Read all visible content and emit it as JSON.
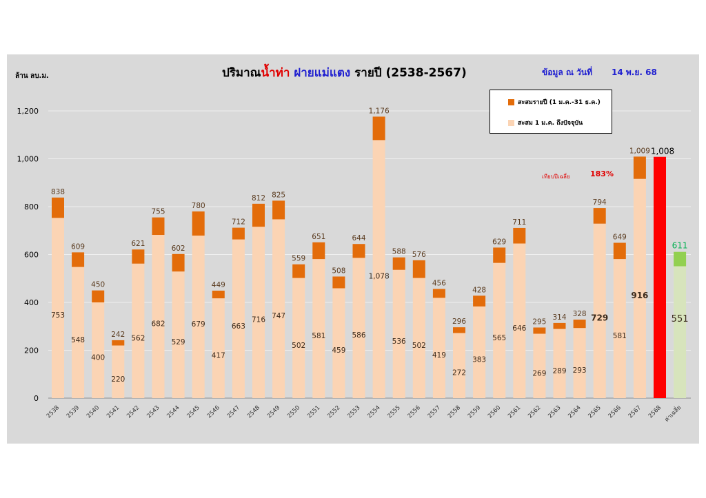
{
  "header": {
    "title_part1": "ปริมาณ",
    "title_part2": "น้ำท่า",
    "title_part3": " ฝายแม่แตง ",
    "title_part4": "รายปี  (2538-2567)",
    "date_label": "ข้อมูล ณ วันที่",
    "date_value": "14 พ.ย. 68",
    "unit": "ล้าน ลบ.ม."
  },
  "legend": {
    "series1": "สะสมรายปี (1 ม.ค.-31 ธ.ค.)",
    "series2": "สะสม 1 ม.ค. ถึงปัจจุบัน"
  },
  "annotation": {
    "compare_label": "เทียบปีเฉลี่ย",
    "percent": "183%"
  },
  "colors": {
    "annual_top": "#e36c0a",
    "to_date": "#fbd4b4",
    "current_year": "#ff0000",
    "avg_top": "#92d050",
    "avg_base": "#d7e4bc",
    "avg_label": "#00b050"
  },
  "chart_data": {
    "type": "bar",
    "title": "ปริมาณน้ำท่า ฝายแม่แตง รายปี  (2538-2567)",
    "ylabel": "ล้าน ลบ.ม.",
    "ylim": [
      0,
      1300
    ],
    "yticks": [
      "0",
      "200",
      "400",
      "600",
      "800",
      "1,000",
      "1,200"
    ],
    "categories": [
      "2538",
      "2539",
      "2540",
      "2541",
      "2542",
      "2543",
      "2544",
      "2545",
      "2546",
      "2547",
      "2548",
      "2549",
      "2550",
      "2551",
      "2552",
      "2553",
      "2554",
      "2555",
      "2556",
      "2557",
      "2558",
      "2559",
      "2560",
      "2561",
      "2562",
      "2563",
      "2564",
      "2565",
      "2566",
      "2567",
      "2568",
      "ค่าเฉลี่ย"
    ],
    "series": [
      {
        "name": "สะสม 1 ม.ค. ถึงปัจจุบัน",
        "values": [
          753,
          548,
          400,
          220,
          562,
          682,
          529,
          679,
          417,
          663,
          716,
          747,
          502,
          581,
          459,
          586,
          1078,
          536,
          502,
          419,
          272,
          383,
          565,
          646,
          269,
          289,
          293,
          729,
          581,
          916,
          1008,
          551
        ],
        "labels": [
          "753",
          "548",
          "400",
          "220",
          "562",
          "682",
          "529",
          "679",
          "417",
          "663",
          "716",
          "747",
          "502",
          "581",
          "459",
          "586",
          "1,078",
          "536",
          "502",
          "419",
          "272",
          "383",
          "565",
          "646",
          "269",
          "289",
          "293",
          "729",
          "581",
          "916",
          "1,008",
          "551"
        ]
      },
      {
        "name": "สะสมรายปี (1 ม.ค.-31 ธ.ค.)",
        "values": [
          838,
          609,
          450,
          242,
          621,
          755,
          602,
          780,
          449,
          712,
          812,
          825,
          559,
          651,
          508,
          644,
          1176,
          588,
          576,
          456,
          296,
          428,
          629,
          711,
          295,
          314,
          328,
          794,
          649,
          1009,
          null,
          611
        ],
        "labels": [
          "838",
          "609",
          "450",
          "242",
          "621",
          "755",
          "602",
          "780",
          "449",
          "712",
          "812",
          "825",
          "559",
          "651",
          "508",
          "644",
          "1,176",
          "588",
          "576",
          "456",
          "296",
          "428",
          "629",
          "711",
          "295",
          "314",
          "328",
          "794",
          "649",
          "1,009",
          "",
          "611"
        ]
      }
    ]
  }
}
